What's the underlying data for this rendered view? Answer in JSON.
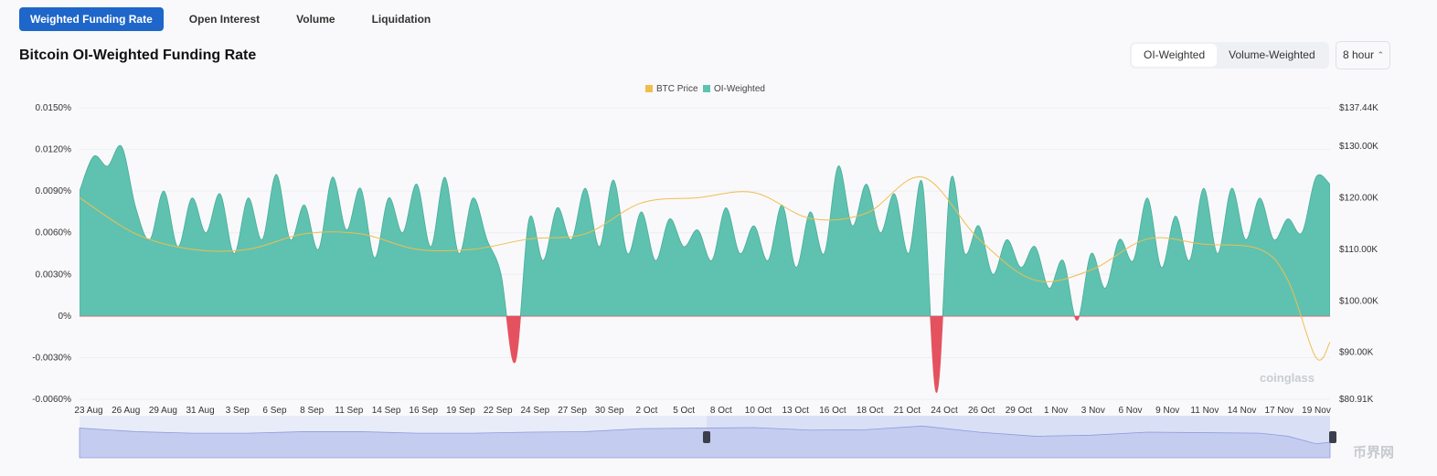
{
  "tabs": [
    {
      "label": "Weighted Funding Rate",
      "active": true
    },
    {
      "label": "Open Interest",
      "active": false
    },
    {
      "label": "Volume",
      "active": false
    },
    {
      "label": "Liquidation",
      "active": false
    }
  ],
  "title": "Bitcoin OI-Weighted Funding Rate",
  "segment": {
    "oi": "OI-Weighted",
    "vol": "Volume-Weighted",
    "active": "oi"
  },
  "interval": "8 hour",
  "watermark": "coinglass",
  "corner_logo": "币界网",
  "colors": {
    "positive": "#5fc2b0",
    "negative": "#e5525f",
    "price": "#f0bd4e",
    "accent": "#1e66c9"
  },
  "chart_data": {
    "type": "area",
    "legend": [
      "BTC Price",
      "OI-Weighted"
    ],
    "legend_position": "top-center",
    "y_left": {
      "ticks": [
        "0.0150%",
        "0.0120%",
        "0.0090%",
        "0.0060%",
        "0.0030%",
        "0%",
        "-0.0030%",
        "-0.0060%"
      ],
      "range": [
        -0.006,
        0.015
      ]
    },
    "y_right": {
      "ticks": [
        "$137.44K",
        "$130.00K",
        "$120.00K",
        "$110.00K",
        "$100.00K",
        "$90.00K",
        "$80.91K"
      ],
      "range": [
        80.91,
        137.44
      ]
    },
    "x_labels": [
      "23 Aug",
      "26 Aug",
      "29 Aug",
      "31 Aug",
      "3 Sep",
      "6 Sep",
      "8 Sep",
      "11 Sep",
      "14 Sep",
      "16 Sep",
      "19 Sep",
      "22 Sep",
      "24 Sep",
      "27 Sep",
      "30 Sep",
      "2 Oct",
      "5 Oct",
      "8 Oct",
      "10 Oct",
      "13 Oct",
      "16 Oct",
      "18 Oct",
      "21 Oct",
      "24 Oct",
      "26 Oct",
      "29 Oct",
      "1 Nov",
      "3 Nov",
      "6 Nov",
      "9 Nov",
      "11 Nov",
      "14 Nov",
      "17 Nov",
      "19 Nov"
    ],
    "series": [
      {
        "name": "OI-Weighted",
        "unit": "%",
        "x": [
          0,
          1,
          2,
          3,
          4,
          5,
          6,
          7,
          8,
          9,
          10,
          11,
          12,
          13,
          14,
          15,
          16,
          17,
          18,
          19,
          20,
          21,
          22,
          23,
          24,
          25,
          26,
          27,
          28,
          29,
          30,
          31,
          32,
          33,
          34,
          35,
          36,
          37,
          38,
          39,
          40,
          41,
          42,
          43,
          44,
          45,
          46,
          47,
          48,
          49,
          50,
          51,
          52,
          53,
          54,
          55,
          56,
          57,
          58,
          59,
          60,
          61,
          62,
          63,
          64,
          65,
          66,
          67,
          68,
          69,
          70,
          71,
          72,
          73,
          74,
          75,
          76,
          77,
          78,
          79,
          80,
          81,
          82,
          83,
          84,
          85,
          86,
          87,
          88,
          89
        ],
        "values": [
          0.009,
          0.0115,
          0.0108,
          0.0122,
          0.0078,
          0.0055,
          0.009,
          0.005,
          0.0085,
          0.006,
          0.0088,
          0.0045,
          0.0085,
          0.0055,
          0.0102,
          0.0055,
          0.008,
          0.0048,
          0.01,
          0.0062,
          0.0092,
          0.0042,
          0.0085,
          0.006,
          0.0095,
          0.005,
          0.01,
          0.0045,
          0.0085,
          0.0055,
          0.003,
          -0.0033,
          0.007,
          0.004,
          0.0078,
          0.0055,
          0.0092,
          0.005,
          0.0098,
          0.0045,
          0.0075,
          0.004,
          0.007,
          0.005,
          0.0062,
          0.004,
          0.0078,
          0.0045,
          0.0065,
          0.004,
          0.008,
          0.0035,
          0.0075,
          0.0045,
          0.0108,
          0.0065,
          0.0095,
          0.006,
          0.0088,
          0.0045,
          0.0095,
          -0.0055,
          0.0098,
          0.0045,
          0.0065,
          0.003,
          0.0055,
          0.0035,
          0.005,
          0.002,
          0.004,
          -0.0003,
          0.0045,
          0.002,
          0.0055,
          0.004,
          0.0085,
          0.0035,
          0.0072,
          0.004,
          0.0092,
          0.0045,
          0.0092,
          0.0055,
          0.0085,
          0.0055,
          0.007,
          0.006,
          0.01,
          0.0095
        ]
      },
      {
        "name": "BTC Price",
        "unit": "$K",
        "x": [
          0,
          4,
          8,
          12,
          16,
          20,
          24,
          28,
          32,
          36,
          40,
          44,
          48,
          52,
          56,
          60,
          64,
          68,
          72,
          76,
          80,
          84,
          86,
          88,
          89
        ],
        "values": [
          120,
          113,
          110,
          110,
          113,
          113,
          110,
          110,
          112,
          113,
          119,
          120,
          121,
          116,
          117,
          124,
          112,
          104,
          106,
          112,
          111,
          110,
          104,
          89,
          92
        ]
      }
    ]
  }
}
